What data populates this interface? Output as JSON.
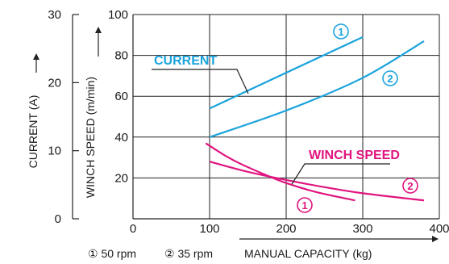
{
  "chart_data": {
    "type": "line",
    "x_axis": {
      "title": "MANUAL CAPACITY (kg)",
      "range": [
        0,
        400
      ],
      "ticks": [
        0,
        100,
        200,
        300,
        400
      ],
      "tick_labels": [
        "0",
        "100",
        "200",
        "300",
        "400"
      ]
    },
    "y_axis_speed": {
      "title": "WINCH SPEED (m/min)",
      "range": [
        0,
        100
      ],
      "ticks": [
        20,
        40,
        60,
        80,
        100
      ],
      "tick_labels": [
        "20",
        "40",
        "60",
        "80",
        "100"
      ]
    },
    "y_axis_current": {
      "title": "CURRENT (A)",
      "range": [
        0,
        30
      ],
      "ticks": [
        0,
        10,
        20,
        30
      ],
      "tick_labels": [
        "0",
        "10",
        "20",
        "30"
      ]
    },
    "grid": true,
    "groups": [
      {
        "label": "CURRENT",
        "color": "#1aa3dc",
        "series": [
          {
            "name": "①",
            "x": [
              100,
              300
            ],
            "y": [
              16.2,
              26.7
            ]
          },
          {
            "name": "②",
            "x": [
              100,
              200,
              300,
              380
            ],
            "y": [
              12.0,
              15.9,
              20.7,
              26.1
            ]
          }
        ]
      },
      {
        "label": "WINCH SPEED",
        "color": "#e0157f",
        "series": [
          {
            "name": "①",
            "x": [
              95,
              120,
              140,
              170,
              200,
              240,
              290
            ],
            "y": [
              37,
              31,
              27,
              22,
              17.5,
              13,
              9
            ]
          },
          {
            "name": "②",
            "x": [
              100,
              150,
              200,
              250,
              300,
              380
            ],
            "y": [
              28,
              23,
              19,
              15.5,
              12.5,
              9
            ]
          }
        ]
      }
    ],
    "legend": [
      "① 50 rpm",
      "② 35 rpm"
    ]
  }
}
